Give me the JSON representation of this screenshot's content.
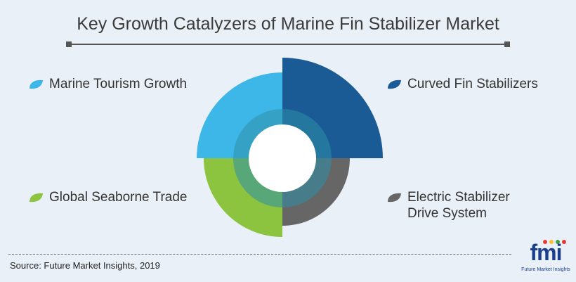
{
  "title": "Key Growth Catalyzers of Marine Fin Stabilizer Market",
  "segments": [
    {
      "label": "Marine Tourism Growth",
      "color": "#3db7e8",
      "position": "top-left"
    },
    {
      "label": "Curved Fin Stabilizers",
      "color": "#1a5b96",
      "position": "top-right"
    },
    {
      "label": "Global Seaborne Trade",
      "color": "#8cc43f",
      "position": "bottom-left"
    },
    {
      "label_line1": "Electric Stabilizer",
      "label_line2": "Drive System",
      "color": "#666666",
      "position": "bottom-right"
    }
  ],
  "inner_ring_color": "#2e8fa8",
  "center_color": "#ffffff",
  "source": "Source: Future Market Insights, 2019",
  "logo": {
    "mark": "fmi",
    "tagline": "Future Market Insights"
  }
}
